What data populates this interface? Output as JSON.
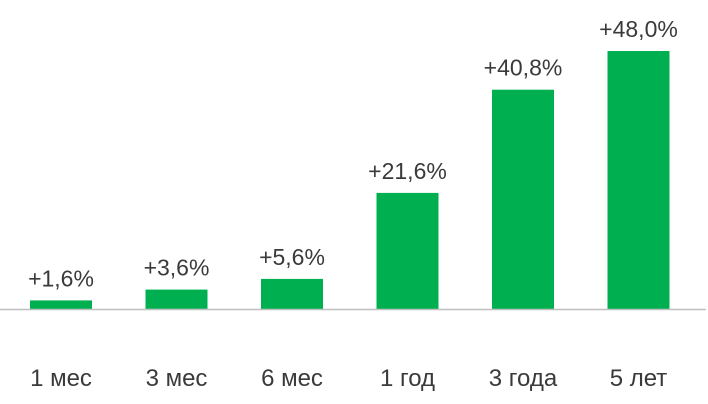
{
  "chart_data": {
    "type": "bar",
    "categories": [
      "1 мес",
      "3 мес",
      "6 мес",
      "1 год",
      "3 года",
      "5 лет"
    ],
    "values": [
      1.6,
      3.6,
      5.6,
      21.6,
      40.8,
      48.0
    ],
    "data_labels": [
      "+1,6%",
      "+3,6%",
      "+5,6%",
      "+21,6%",
      "+40,8%",
      "+48,0%"
    ],
    "title": "",
    "xlabel": "",
    "ylabel": "",
    "ylim": [
      0,
      48.0
    ],
    "grid": false,
    "legend": "none",
    "bar_color": "#00b050",
    "axis_color": "#bfbfbf",
    "text_color": "#3a3a3a"
  }
}
